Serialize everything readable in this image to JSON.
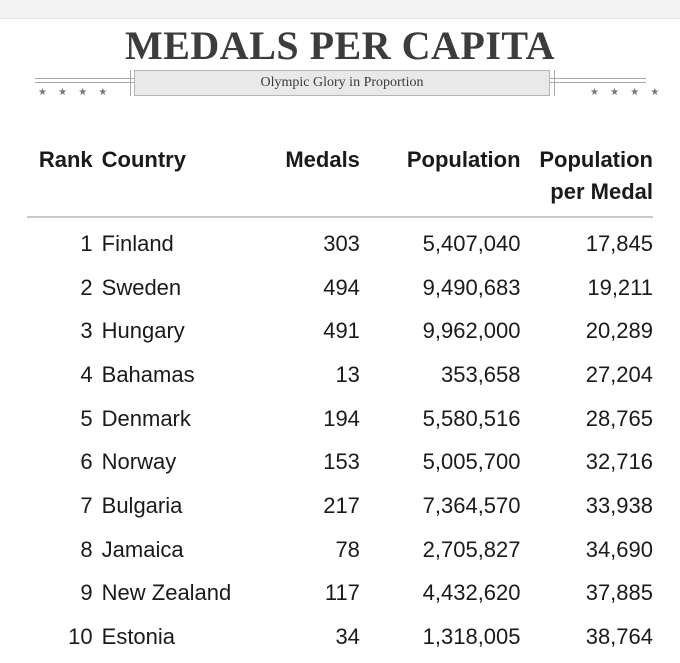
{
  "title": "MEDALS PER CAPITA",
  "subtitle": "Olympic Glory in Proportion",
  "decoration": {
    "stars_left": "★ ★ ★ ★",
    "stars_right": "★ ★ ★ ★"
  },
  "table": {
    "headers": {
      "rank": "Rank",
      "country": "Country",
      "medals": "Medals",
      "population": "Population",
      "population_per_medal_line1": "Population",
      "population_per_medal_line2": "per Medal"
    },
    "rows": [
      {
        "rank": "1",
        "country": "Finland",
        "medals": "303",
        "population": "5,407,040",
        "per_medal": "17,845"
      },
      {
        "rank": "2",
        "country": "Sweden",
        "medals": "494",
        "population": "9,490,683",
        "per_medal": "19,211"
      },
      {
        "rank": "3",
        "country": "Hungary",
        "medals": "491",
        "population": "9,962,000",
        "per_medal": "20,289"
      },
      {
        "rank": "4",
        "country": "Bahamas",
        "medals": "13",
        "population": "353,658",
        "per_medal": "27,204"
      },
      {
        "rank": "5",
        "country": "Denmark",
        "medals": "194",
        "population": "5,580,516",
        "per_medal": "28,765"
      },
      {
        "rank": "6",
        "country": "Norway",
        "medals": "153",
        "population": "5,005,700",
        "per_medal": "32,716"
      },
      {
        "rank": "7",
        "country": "Bulgaria",
        "medals": "217",
        "population": "7,364,570",
        "per_medal": "33,938"
      },
      {
        "rank": "8",
        "country": "Jamaica",
        "medals": "78",
        "population": "2,705,827",
        "per_medal": "34,690"
      },
      {
        "rank": "9",
        "country": "New Zealand",
        "medals": "117",
        "population": "4,432,620",
        "per_medal": "37,885"
      },
      {
        "rank": "10",
        "country": "Estonia",
        "medals": "34",
        "population": "1,318,005",
        "per_medal": "38,764"
      }
    ]
  },
  "chart_data": {
    "type": "table",
    "title": "MEDALS PER CAPITA",
    "subtitle": "Olympic Glory in Proportion",
    "columns": [
      "Rank",
      "Country",
      "Medals",
      "Population",
      "Population per Medal"
    ],
    "rows": [
      [
        1,
        "Finland",
        303,
        5407040,
        17845
      ],
      [
        2,
        "Sweden",
        494,
        9490683,
        19211
      ],
      [
        3,
        "Hungary",
        491,
        9962000,
        20289
      ],
      [
        4,
        "Bahamas",
        13,
        353658,
        27204
      ],
      [
        5,
        "Denmark",
        194,
        5580516,
        28765
      ],
      [
        6,
        "Norway",
        153,
        5005700,
        32716
      ],
      [
        7,
        "Bulgaria",
        217,
        7364570,
        33938
      ],
      [
        8,
        "Jamaica",
        78,
        2705827,
        34690
      ],
      [
        9,
        "New Zealand",
        117,
        4432620,
        37885
      ],
      [
        10,
        "Estonia",
        34,
        1318005,
        38764
      ]
    ]
  }
}
